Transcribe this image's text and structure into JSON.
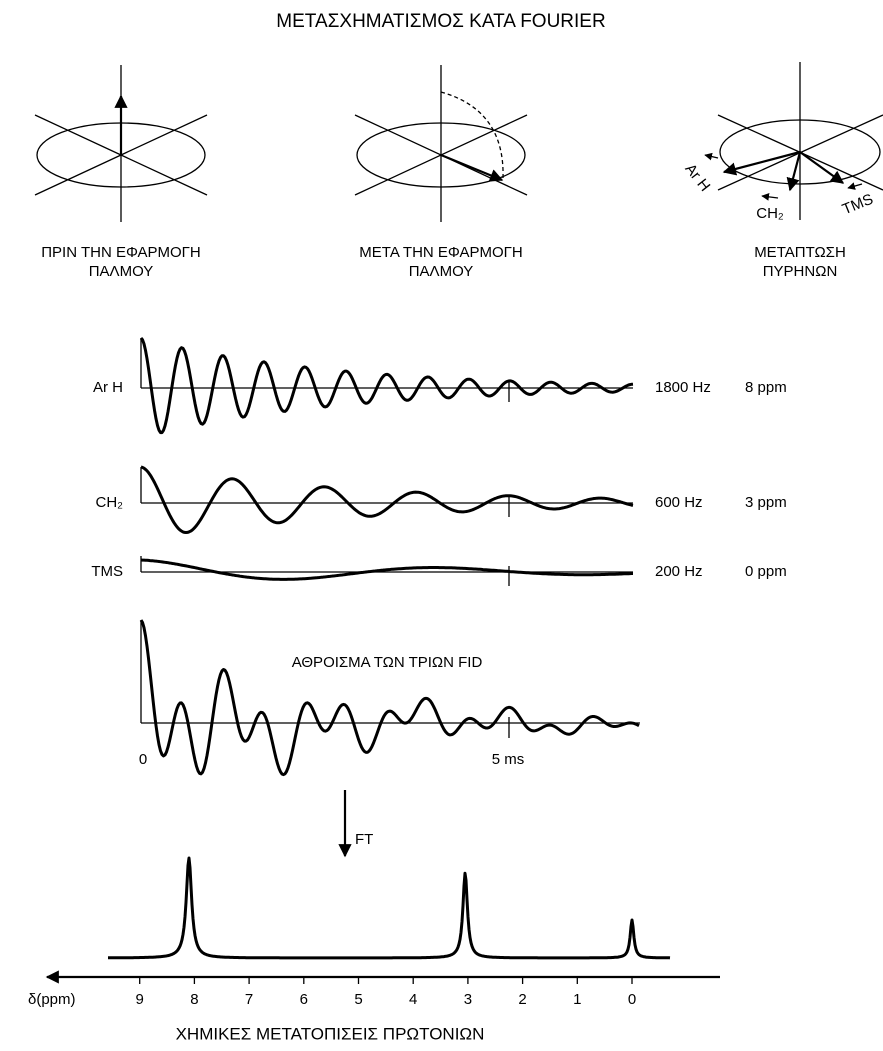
{
  "title": "ΜΕΤΑΣΧΗΜΑΤΙΣΜΟΣ ΚΑΤΑ FOURIER",
  "panels": [
    {
      "caption": [
        "ΠΡΙΝ ΤΗΝ ΕΦΑΡΜΟΓΗ",
        "ΠΑΛΜΟΥ"
      ]
    },
    {
      "caption": [
        "ΜΕΤΑ ΤΗΝ ΕΦΑΡΜΟΓΗ",
        "ΠΑΛΜΟΥ"
      ]
    },
    {
      "caption": [
        "ΜΕΤΑΠΤΩΣΗ",
        "ΠΥΡΗΝΩΝ"
      ],
      "labels": [
        "Ar H",
        "CH₂",
        "TMS"
      ]
    }
  ],
  "fids": [
    {
      "label": "Ar H",
      "frequency": "1800 Hz",
      "shift": "8 ppm"
    },
    {
      "label": "CH₂",
      "frequency": "600 Hz",
      "shift": "3 ppm"
    },
    {
      "label": "TMS",
      "frequency": "200 Hz",
      "shift": "0 ppm"
    }
  ],
  "sum": {
    "label": "ΑΘΡΟΙΣΜΑ ΤΩΝ ΤΡΙΩΝ FID",
    "time_labels": [
      "0",
      "5 ms"
    ]
  },
  "transform": "FT",
  "spectrum": {
    "axis_label": "δ(ppm)",
    "ticks": [
      9,
      8,
      7,
      6,
      5,
      4,
      3,
      2,
      1,
      0
    ],
    "caption": "ΧΗΜΙΚΕΣ ΜΕΤΑΤΟΠΙΣΕΙΣ ΠΡΩΤΟΝΙΩΝ"
  }
}
